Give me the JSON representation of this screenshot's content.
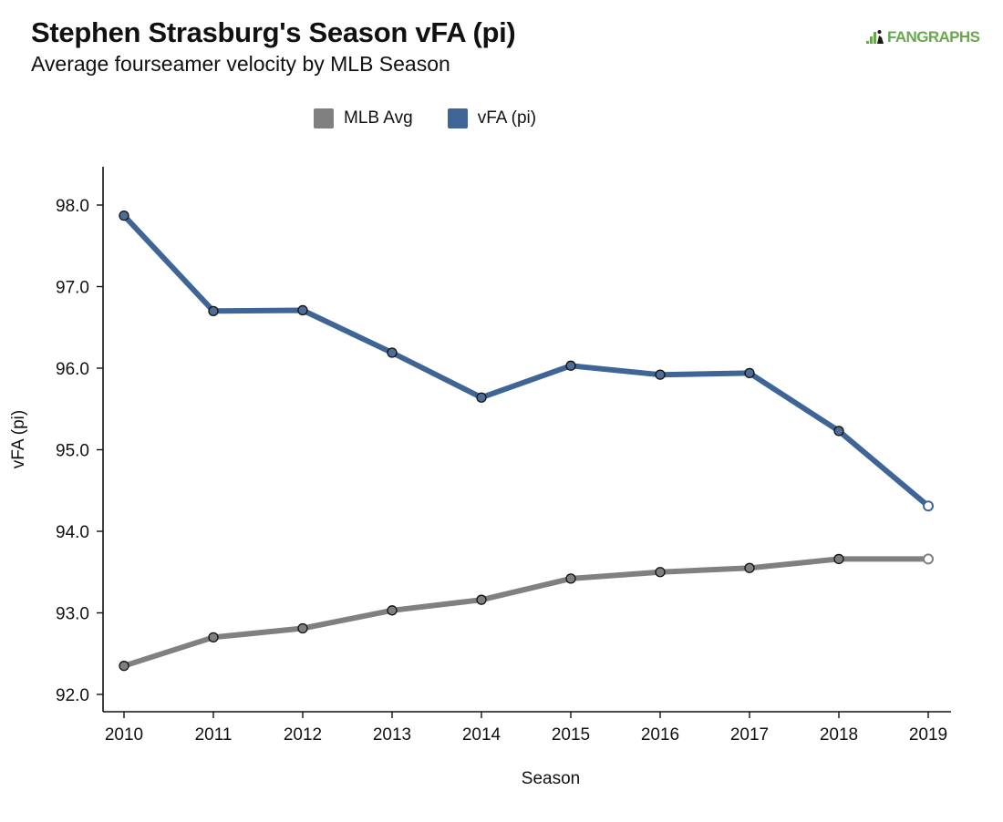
{
  "header": {
    "title": "Stephen Strasburg's Season vFA (pi)",
    "subtitle": "Average fourseamer velocity by MLB Season",
    "logo_text": "FANGRAPHS"
  },
  "colors": {
    "mlb_avg": "#808080",
    "vfa": "#3f6596",
    "point_fill_mlb": "#7f7f7f",
    "point_fill_vfa": "#4f6c96",
    "logo": "#6aa84f"
  },
  "chart_data": {
    "type": "line",
    "title": "",
    "xlabel": "Season",
    "ylabel": "vFA (pi)",
    "x": [
      2010,
      2011,
      2012,
      2013,
      2014,
      2015,
      2016,
      2017,
      2018,
      2019
    ],
    "x_tick_labels": [
      "2010",
      "2011",
      "2012",
      "2013",
      "2014",
      "2015",
      "2016",
      "2017",
      "2018",
      "2019"
    ],
    "y_tick_labels": [
      "92.0",
      "93.0",
      "94.0",
      "95.0",
      "96.0",
      "97.0",
      "98.0"
    ],
    "y_ticks": [
      92,
      93,
      94,
      95,
      96,
      97,
      98
    ],
    "ylim": [
      91.8,
      98.5
    ],
    "grid": false,
    "legend_position": "top-center",
    "series": [
      {
        "name": "MLB Avg",
        "color": "#808080",
        "values": [
          92.35,
          92.7,
          92.81,
          93.03,
          93.16,
          93.42,
          93.5,
          93.55,
          93.66,
          93.66
        ]
      },
      {
        "name": "vFA (pi)",
        "color": "#3f6596",
        "values": [
          97.87,
          96.7,
          96.71,
          96.19,
          95.64,
          96.03,
          95.92,
          95.94,
          95.23,
          94.31
        ]
      }
    ]
  }
}
